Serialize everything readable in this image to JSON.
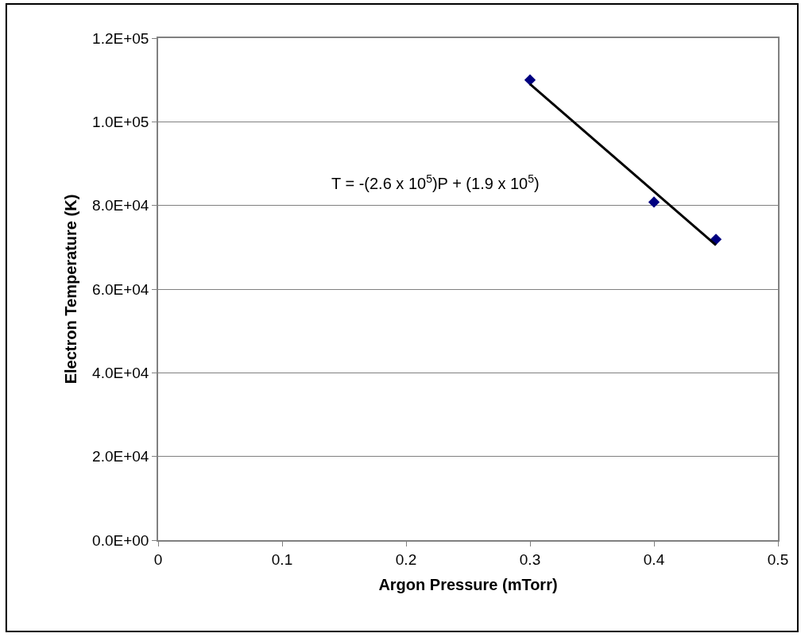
{
  "chart_data": {
    "type": "scatter",
    "xlabel": "Argon Pressure (mTorr)",
    "ylabel": "Electron Temperature (K)",
    "annotations": [
      "T = -(2.6 x 10$^{5}$)P + (1.9 x 10$^{5}$)"
    ],
    "series": [
      {
        "color": "#000080",
        "marker": "diamond",
        "x": [
          0.3,
          0.4,
          0.45
        ],
        "values": [
          110000,
          80800,
          71900
        ]
      },
      {
        "type": "line",
        "color": "#000000",
        "marker": "none",
        "line_style": "solid",
        "x": [
          0.3,
          0.45
        ],
        "values": [
          109000,
          70500
        ]
      }
    ],
    "xlim": [
      0,
      0.5
    ],
    "xticks": [
      0,
      0.1,
      0.2,
      0.3,
      0.4,
      0.5
    ],
    "ylim": [
      0,
      120000
    ],
    "yticks": [
      {
        "value": 0,
        "label": "0.0E+00"
      },
      {
        "value": 20000,
        "label": "2.0E+04"
      },
      {
        "value": 40000,
        "label": "4.0E+04"
      },
      {
        "value": 60000,
        "label": "6.0E+04"
      },
      {
        "value": 80000,
        "label": "8.0E+04"
      },
      {
        "value": 100000,
        "label": "1.0E+05"
      },
      {
        "value": 120000,
        "label": "1.2E+05"
      }
    ],
    "grid": "y"
  }
}
